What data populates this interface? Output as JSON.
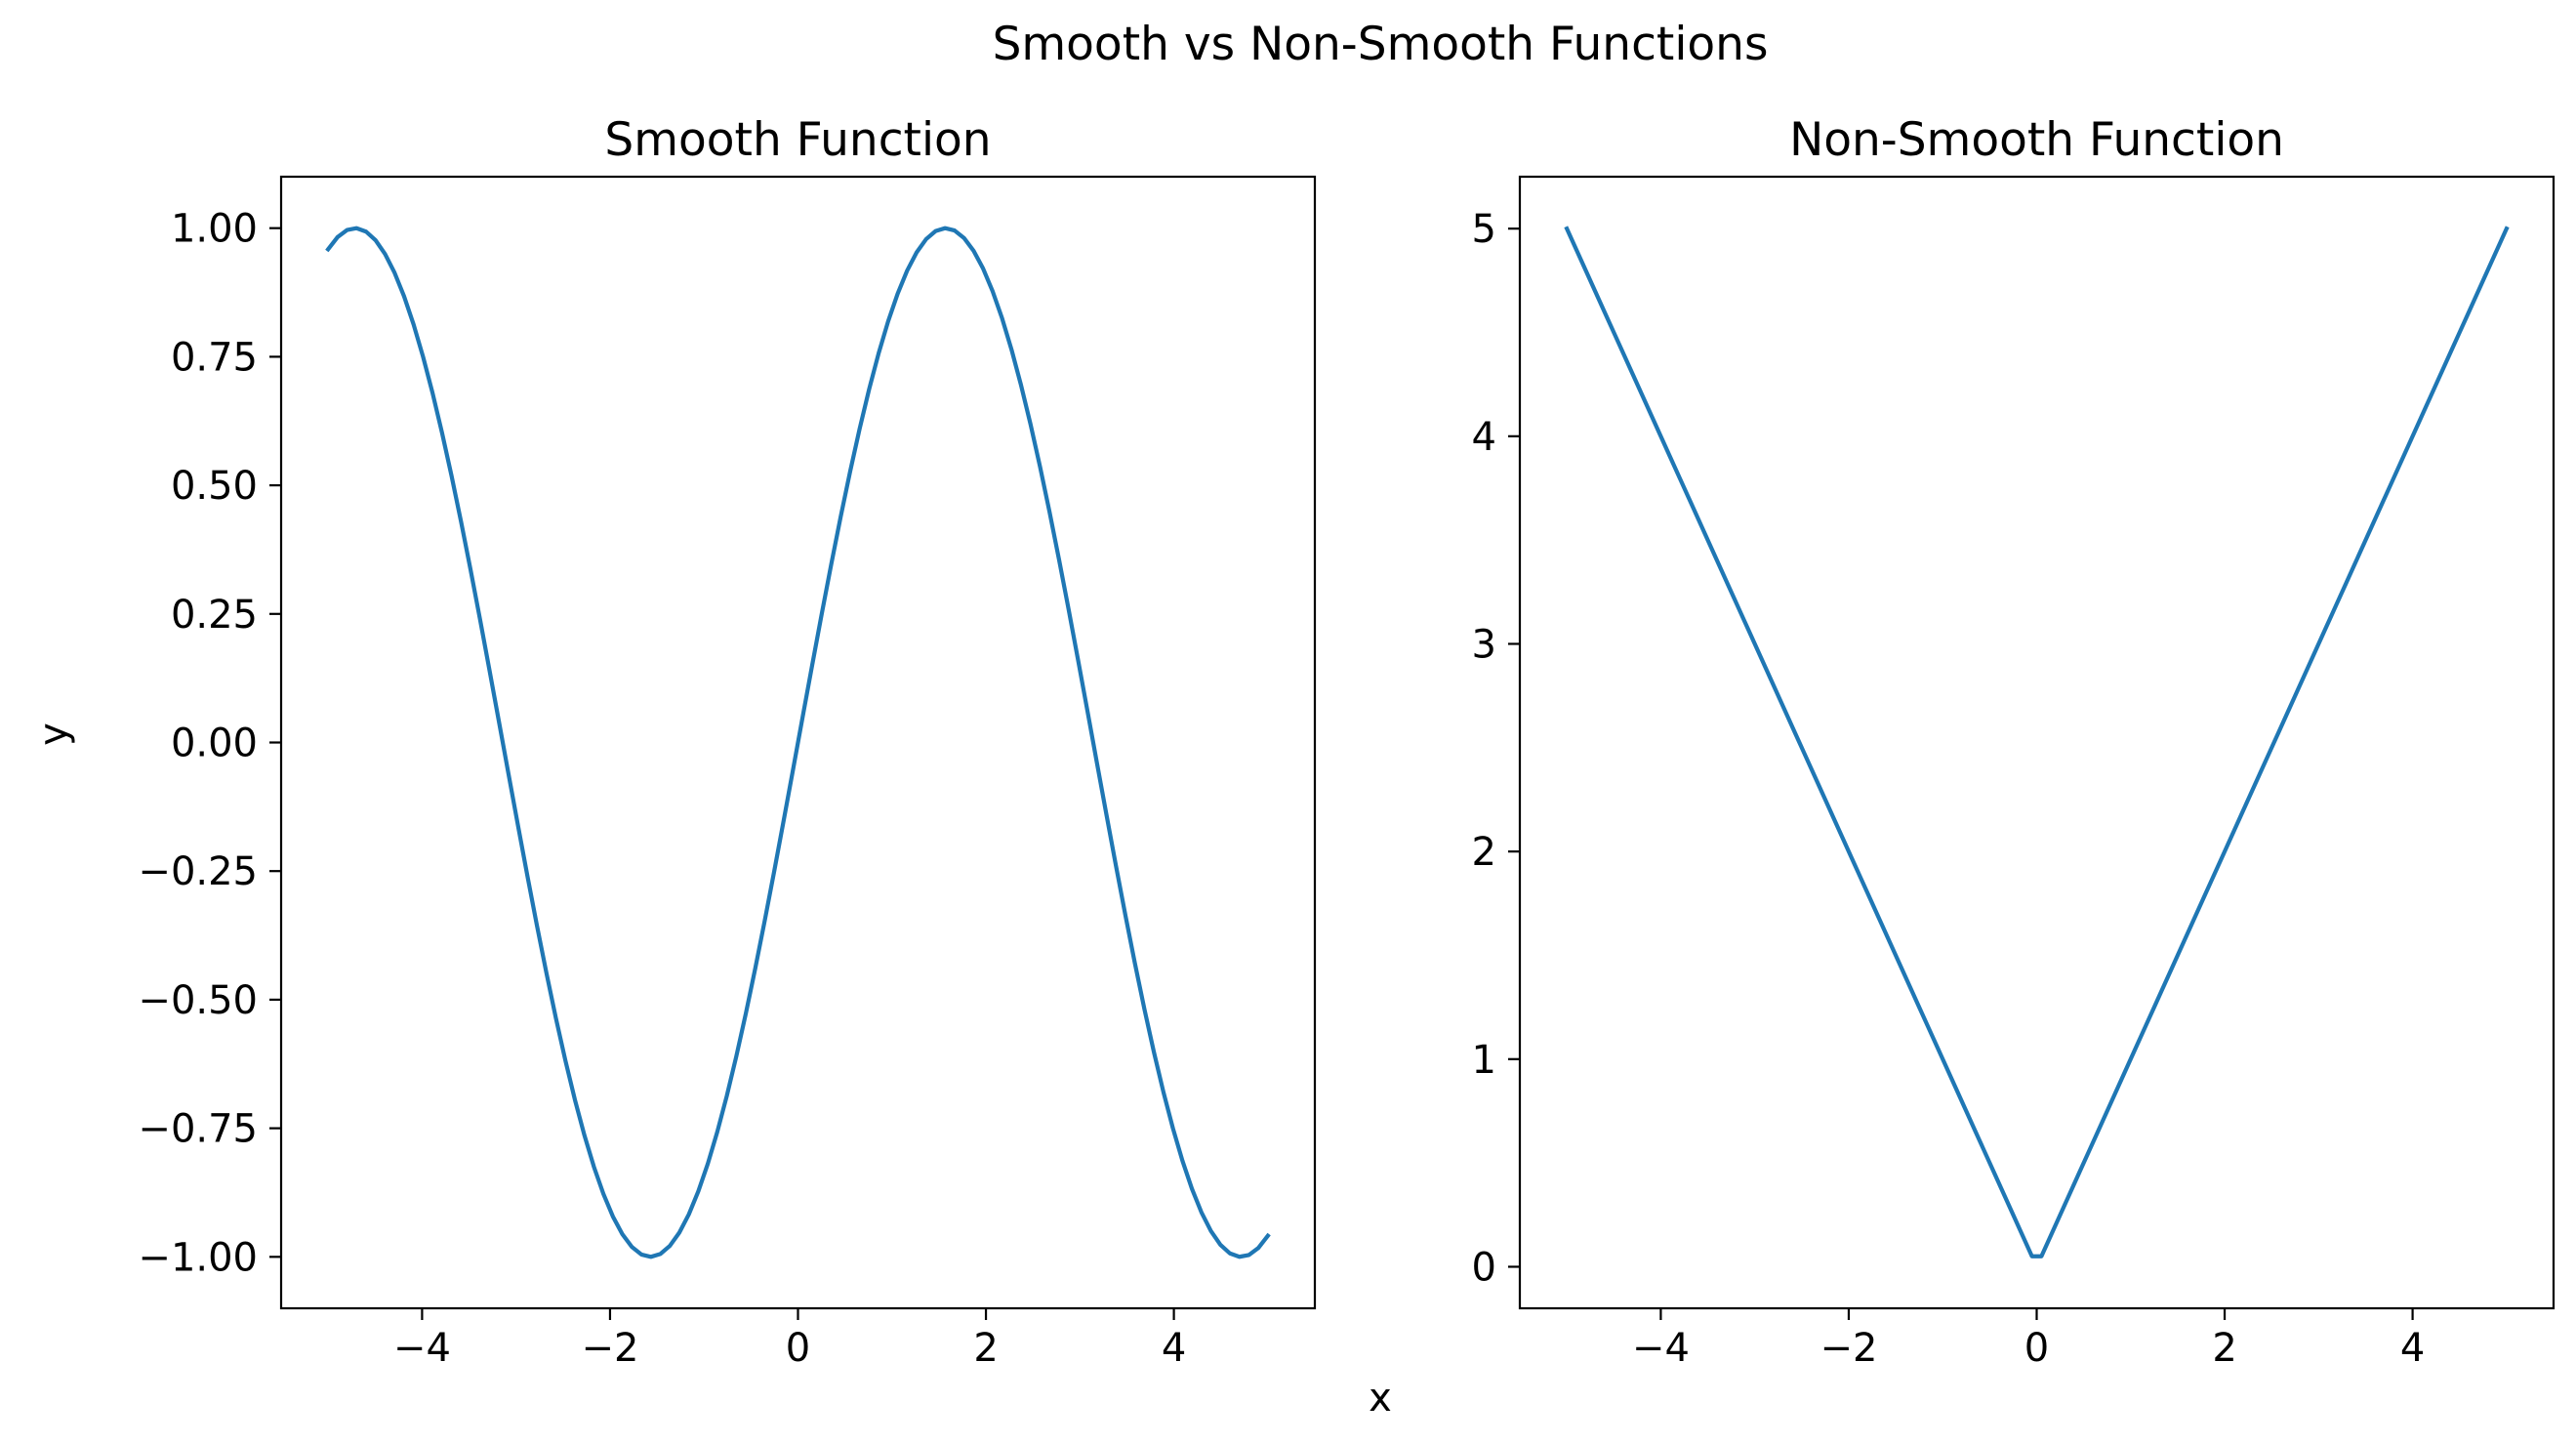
{
  "chart_data": {
    "suptitle": "Smooth vs Non-Smooth Functions",
    "shared_xlabel": "x",
    "shared_ylabel": "y",
    "line_color": "#1f77b4",
    "panels": [
      {
        "type": "line",
        "title": "Smooth Function",
        "function": "sin(x)",
        "x_range": [
          -5,
          5
        ],
        "num_points": 100,
        "xlim": [
          -5.5,
          5.5
        ],
        "ylim": [
          -1.1,
          1.1
        ],
        "xticks": [
          -4,
          -2,
          0,
          2,
          4
        ],
        "xtick_labels": [
          "−4",
          "−2",
          "0",
          "2",
          "4"
        ],
        "yticks": [
          -1.0,
          -0.75,
          -0.5,
          -0.25,
          0.0,
          0.25,
          0.5,
          0.75,
          1.0
        ],
        "ytick_labels": [
          "−1.00",
          "−0.75",
          "−0.50",
          "−0.25",
          "0.00",
          "0.25",
          "0.50",
          "0.75",
          "1.00"
        ],
        "grid": false
      },
      {
        "type": "line",
        "title": "Non-Smooth Function",
        "function": "abs(x)",
        "x_range": [
          -5,
          5
        ],
        "num_points": 100,
        "xlim": [
          -5.5,
          5.5
        ],
        "ylim": [
          -0.2,
          5.25
        ],
        "xticks": [
          -4,
          -2,
          0,
          2,
          4
        ],
        "xtick_labels": [
          "−4",
          "−2",
          "0",
          "2",
          "4"
        ],
        "yticks": [
          0,
          1,
          2,
          3,
          4,
          5
        ],
        "ytick_labels": [
          "0",
          "1",
          "2",
          "3",
          "4",
          "5"
        ],
        "grid": false
      }
    ]
  }
}
